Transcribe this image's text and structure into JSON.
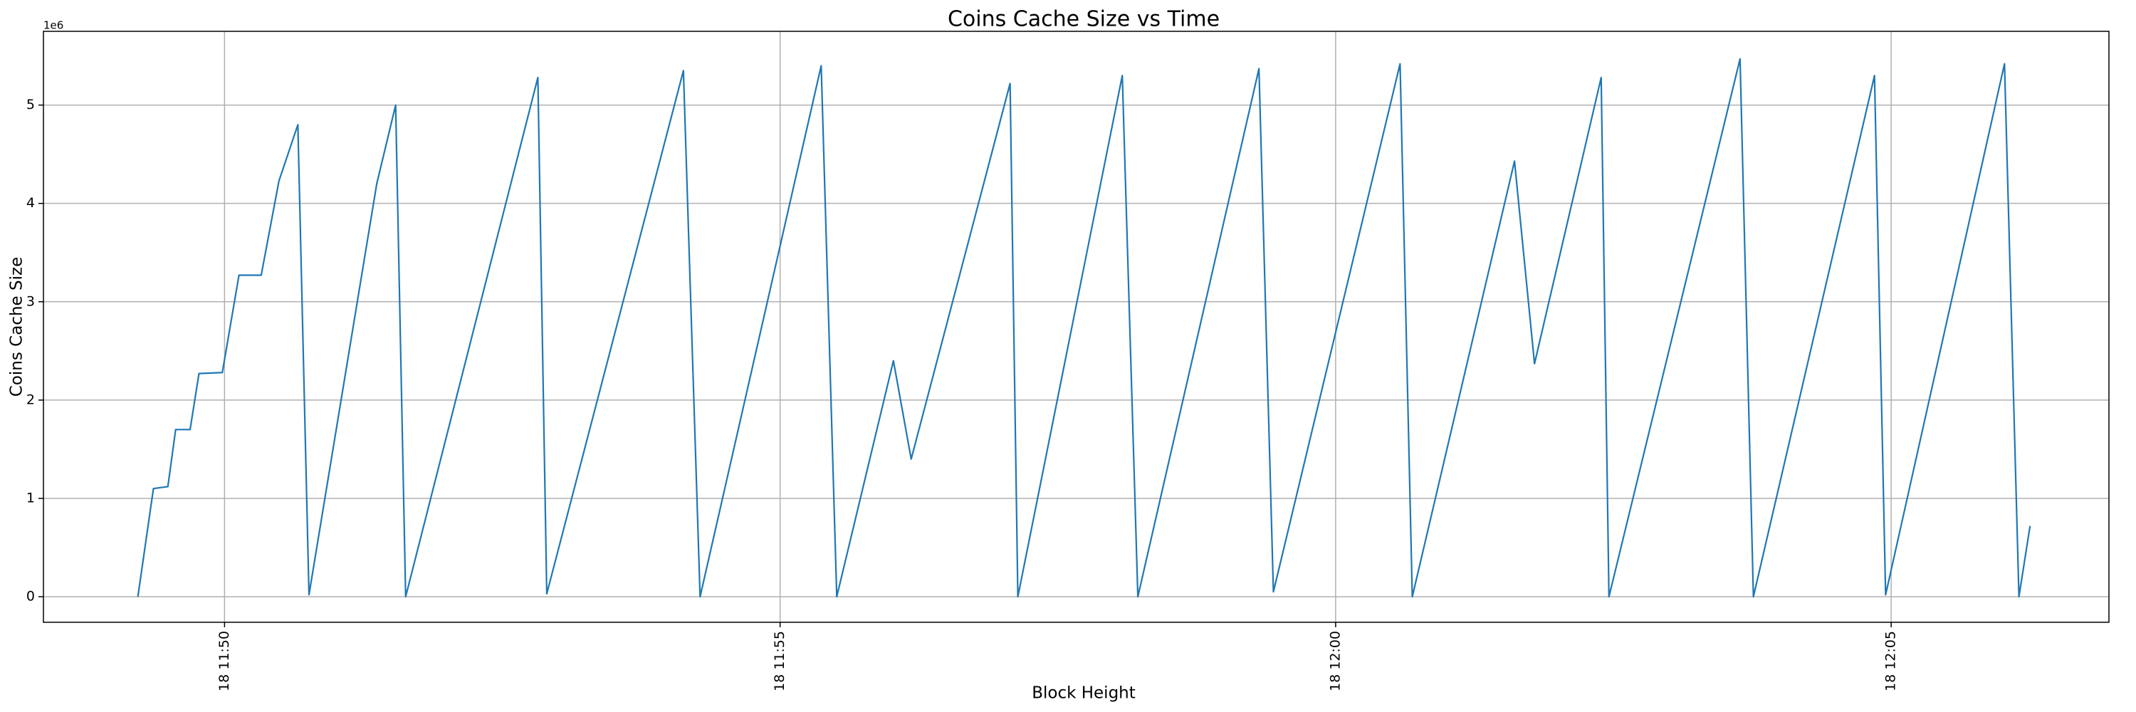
{
  "chart_data": {
    "type": "line",
    "title": "Coins Cache Size vs Time",
    "xlabel": "Block Height",
    "ylabel": "Coins Cache Size",
    "y_offset_label": "1e6",
    "grid": true,
    "series": [
      {
        "name": "Coins Cache Size",
        "color": "#1f77b4",
        "x": [
          709.22,
          709.36,
          709.49,
          709.56,
          709.69,
          709.77,
          709.98,
          710.13,
          710.33,
          710.49,
          710.66,
          710.76,
          711.37,
          711.54,
          711.63,
          712.82,
          712.9,
          714.13,
          714.28,
          715.37,
          715.51,
          716.02,
          716.18,
          717.07,
          717.14,
          718.08,
          718.22,
          719.31,
          719.44,
          720.58,
          720.69,
          721.61,
          721.79,
          722.39,
          722.46,
          723.64,
          723.76,
          724.85,
          724.95,
          726.02,
          726.15,
          726.25
        ],
        "values": [
          0,
          1.1,
          1.12,
          1.7,
          1.7,
          2.27,
          2.28,
          3.27,
          3.27,
          4.23,
          4.8,
          0.02,
          4.2,
          5.0,
          0,
          5.28,
          0.03,
          5.35,
          0,
          5.4,
          0,
          2.4,
          1.4,
          5.22,
          0,
          5.3,
          0,
          5.37,
          0.05,
          5.42,
          0,
          4.43,
          2.37,
          5.28,
          0,
          5.47,
          0,
          5.3,
          0.02,
          5.42,
          0,
          0.72
        ]
      }
    ],
    "xlim": [
      708.37,
      726.96
    ],
    "xticks": [
      {
        "value": 710,
        "label": "18 11:50"
      },
      {
        "value": 715,
        "label": "18 11:55"
      },
      {
        "value": 720,
        "label": "18 12:00"
      },
      {
        "value": 725,
        "label": "18 12:05"
      }
    ],
    "ylim": [
      -0.26,
      5.75
    ],
    "yticks": [
      0,
      1,
      2,
      3,
      4,
      5
    ]
  }
}
